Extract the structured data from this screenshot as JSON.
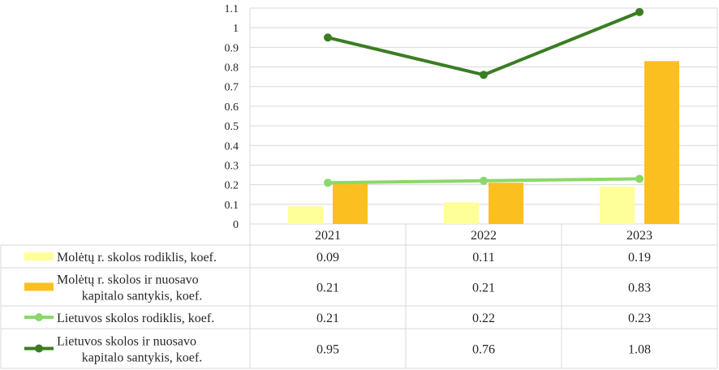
{
  "chart_data": {
    "type": "bar",
    "categories": [
      "2021",
      "2022",
      "2023"
    ],
    "ylim": [
      0,
      1.1
    ],
    "yticks": [
      "0",
      "0.1",
      "0.2",
      "0.3",
      "0.4",
      "0.5",
      "0.6",
      "0.7",
      "0.8",
      "0.9",
      "1",
      "1.1"
    ],
    "grid": true,
    "legend_placement": "data-table",
    "series": [
      {
        "name": "Molėtų r. skolos rodiklis, koef.",
        "kind": "bar",
        "color": "#ffff99",
        "values": [
          0.09,
          0.11,
          0.19
        ],
        "labels": [
          "0.09",
          "0.11",
          "0.19"
        ]
      },
      {
        "name": "Molėtų r. skolos ir nuosavo kapitalo santykis, koef.",
        "name_lines": [
          "Molėtų r. skolos ir nuosavo",
          "kapitalo santykis, koef."
        ],
        "kind": "bar",
        "color": "#fbbf1f",
        "values": [
          0.21,
          0.21,
          0.83
        ],
        "labels": [
          "0.21",
          "0.21",
          "0.83"
        ]
      },
      {
        "name": "Lietuvos skolos rodiklis, koef.",
        "kind": "line",
        "color": "#8ad86a",
        "values": [
          0.21,
          0.22,
          0.23
        ],
        "labels": [
          "0.21",
          "0.22",
          "0.23"
        ]
      },
      {
        "name": "Lietuvos skolos ir nuosavo kapitalo santykis, koef.",
        "name_lines": [
          "Lietuvos skolos ir nuosavo",
          "kapitalo santykis, koef."
        ],
        "kind": "line",
        "color": "#3a7d22",
        "values": [
          0.95,
          0.76,
          1.08
        ],
        "labels": [
          "0.95",
          "0.76",
          "1.08"
        ]
      }
    ]
  }
}
